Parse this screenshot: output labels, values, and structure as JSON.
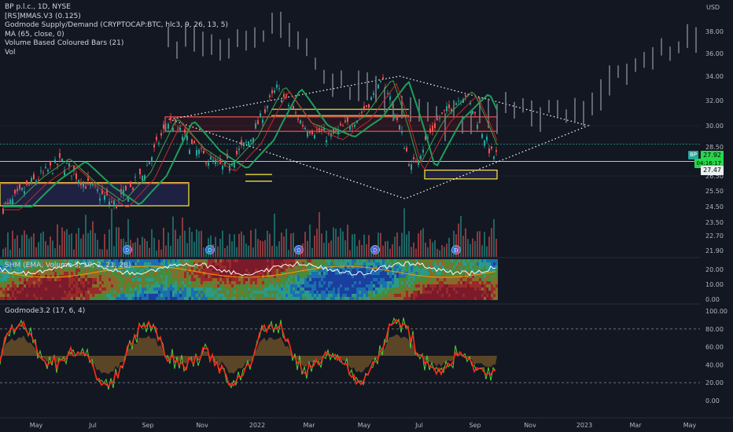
{
  "legend": {
    "title": "BP p.l.c., 1D, NYSE",
    "lines": [
      "[RS]MMAS.V3 (0.125)",
      "Godmode Supply/Demand (CRYPTOCAP:BTC, hlc3, 9, 26, 13, 5)",
      "MA (65, close, 0)",
      "Volume Based Coloured Bars (21)",
      "Vol"
    ]
  },
  "panes": {
    "shm_title": "SHM (EMA, Volume 3, 10, 2, 21, 28)",
    "godmode_title": "Godmode3.2 (17, 6, 4)"
  },
  "tags": {
    "symbol": "BP",
    "last_price": "27.92",
    "countdown": "04:16:17",
    "ref_price": "27.47"
  },
  "colors": {
    "background": "#131722",
    "bull": "#26a69a",
    "bear": "#ef5350",
    "neutral_bar": "#787b86",
    "ma_green": "#1e9e5a",
    "godmode_red": "#ff2a1a",
    "godmode_green": "#4cd13a",
    "godmode_fill": "#7a5a2a"
  },
  "chart_data": [
    {
      "type": "candlestick",
      "title": "BP p.l.c., 1D, NYSE",
      "y_unit": "USD",
      "y_ticks": [
        38.0,
        36.0,
        34.0,
        32.0,
        30.0,
        28.5,
        26.5,
        25.5,
        24.5,
        23.5,
        22.7,
        21.9
      ],
      "x_ticks": [
        "May",
        "Jul",
        "Sep",
        "Nov",
        "2022",
        "Mar",
        "May",
        "Jul",
        "Sep",
        "Nov",
        "2023",
        "Mar",
        "May"
      ],
      "price_path": [
        {
          "date": "2021-04",
          "close": 24.5
        },
        {
          "date": "2021-05",
          "close": 26.2
        },
        {
          "date": "2021-06",
          "close": 27.5
        },
        {
          "date": "2021-07",
          "close": 25.8
        },
        {
          "date": "2021-08",
          "close": 24.6
        },
        {
          "date": "2021-09",
          "close": 26.5
        },
        {
          "date": "2021-10",
          "close": 30.4
        },
        {
          "date": "2021-11",
          "close": 28.2
        },
        {
          "date": "2021-12",
          "close": 27.0
        },
        {
          "date": "2022-01",
          "close": 29.0
        },
        {
          "date": "2022-02",
          "close": 33.0
        },
        {
          "date": "2022-03",
          "close": 30.0
        },
        {
          "date": "2022-04",
          "close": 29.2
        },
        {
          "date": "2022-05",
          "close": 30.6
        },
        {
          "date": "2022-06",
          "close": 33.6
        },
        {
          "date": "2022-07",
          "close": 27.0
        },
        {
          "date": "2022-08",
          "close": 30.5
        },
        {
          "date": "2022-09",
          "close": 32.6
        },
        {
          "date": "2022-10",
          "close": 27.9
        }
      ],
      "projection_path": [
        {
          "date": "2021-12",
          "close": 37.0
        },
        {
          "date": "2022-02",
          "close": 38.5
        },
        {
          "date": "2022-04",
          "close": 34.0
        },
        {
          "date": "2022-06",
          "close": 32.0
        },
        {
          "date": "2022-08",
          "close": 30.5
        },
        {
          "date": "2022-11",
          "close": 31.5
        },
        {
          "date": "2023-01",
          "close": 30.5
        },
        {
          "date": "2023-03",
          "close": 34.5
        },
        {
          "date": "2023-05",
          "close": 37.0
        }
      ],
      "last_price": 27.92,
      "ref_price": 27.47
    },
    {
      "type": "line",
      "title": "SHM (EMA, Volume 3, 10, 2, 21, 28)",
      "y_ticks": [
        20.0,
        10.0,
        0.0
      ]
    },
    {
      "type": "line",
      "title": "Godmode3.2 (17, 6, 4)",
      "y_ticks": [
        100.0,
        80.0,
        60.0,
        40.0,
        20.0,
        0.0
      ],
      "levels": [
        80,
        20
      ]
    }
  ]
}
